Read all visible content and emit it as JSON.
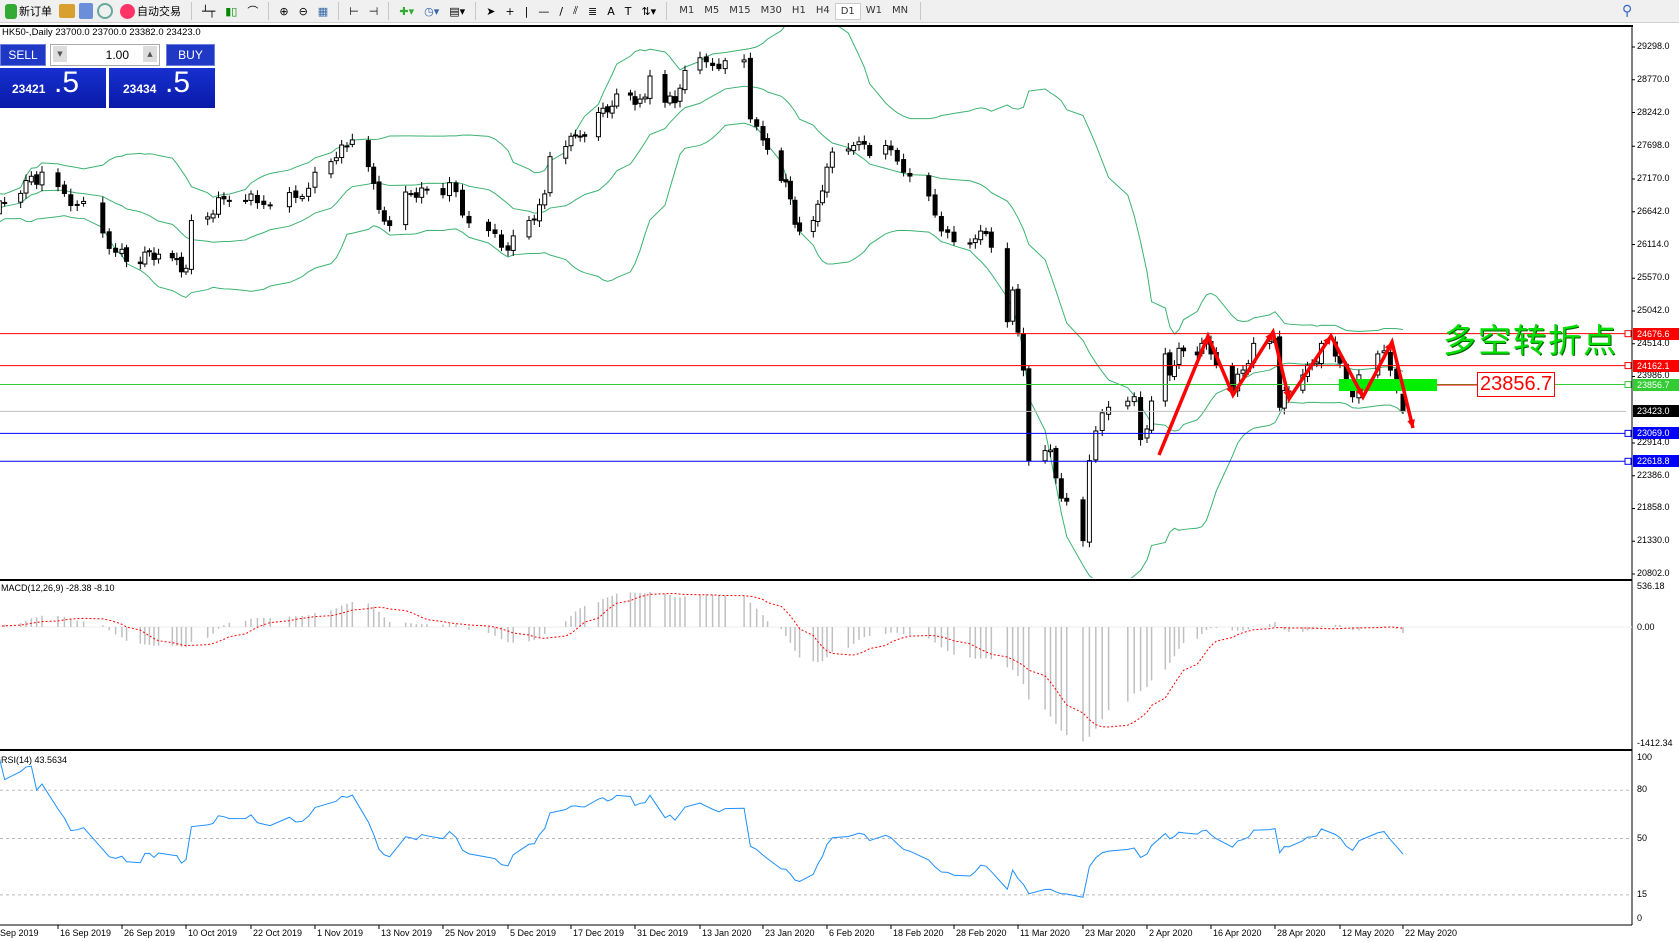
{
  "toolbar": {
    "new_order": "新订单",
    "auto_trading": "自动交易",
    "periods": [
      "M1",
      "M5",
      "M15",
      "M30",
      "H1",
      "H4",
      "D1",
      "W1",
      "MN"
    ],
    "active_period": "D1"
  },
  "chart": {
    "info": "HK50-,Daily  23700.0 23700.0 23382.0 23423.0",
    "symbol": "HK50-",
    "timeframe": "Daily"
  },
  "trade_panel": {
    "sell_label": "SELL",
    "buy_label": "BUY",
    "lot": "1.00",
    "sell_price_main": "23421",
    "sell_price_big": ".5",
    "buy_price_main": "23434",
    "buy_price_big": ".5"
  },
  "price_axis": [
    "29298.0",
    "28770.0",
    "28242.0",
    "27698.0",
    "27170.0",
    "26642.0",
    "26114.0",
    "25570.0",
    "25042.0",
    "24514.0",
    "23986.0",
    "22914.0",
    "22386.0",
    "21858.0",
    "21330.0",
    "20802.0"
  ],
  "levels": [
    {
      "value": "24676.6",
      "color": "#ff0000"
    },
    {
      "value": "24162.1",
      "color": "#ff0000"
    },
    {
      "value": "23856.7",
      "color": "#33cc33"
    },
    {
      "value": "23423.0",
      "color": "#000000",
      "line": "#c0c0c0"
    },
    {
      "value": "23069.0",
      "color": "#0000ff"
    },
    {
      "value": "22618.8",
      "color": "#0000ff"
    }
  ],
  "annotation": {
    "text": "多空转折点",
    "price_box": "23856.7"
  },
  "macd": {
    "label": "MACD(12,26,9) -28.38 -8.10",
    "axis": [
      "536.18",
      "0.00",
      "-1412.34"
    ]
  },
  "rsi": {
    "label": "RSI(14) 43.5634",
    "axis": [
      "100",
      "80",
      "50",
      "15",
      "0"
    ],
    "levels": [
      80,
      50,
      15
    ]
  },
  "date_axis": [
    "Sep 2019",
    "16 Sep 2019",
    "26 Sep 2019",
    "10 Oct 2019",
    "22 Oct 2019",
    "1 Nov 2019",
    "13 Nov 2019",
    "25 Nov 2019",
    "5 Dec 2019",
    "17 Dec 2019",
    "31 Dec 2019",
    "13 Jan 2020",
    "23 Jan 2020",
    "6 Feb 2020",
    "18 Feb 2020",
    "28 Feb 2020",
    "11 Mar 2020",
    "23 Mar 2020",
    "2 Apr 2020",
    "16 Apr 2020",
    "28 Apr 2020",
    "12 May 2020",
    "22 May 2020"
  ],
  "chart_data": {
    "type": "candlestick",
    "ylim": [
      20802,
      29298
    ],
    "indicators": [
      "Bollinger Bands",
      "MACD(12,26,9)",
      "RSI(14)"
    ],
    "close_keypoints": [
      [
        "2019-09-04",
        26590
      ],
      [
        "2019-09-13",
        27280
      ],
      [
        "2019-09-19",
        26760
      ],
      [
        "2019-09-25",
        25990
      ],
      [
        "2019-10-07",
        25900
      ],
      [
        "2019-10-10",
        25730
      ],
      [
        "2019-10-11",
        26500
      ],
      [
        "2019-10-17",
        26850
      ],
      [
        "2019-10-24",
        26760
      ],
      [
        "2019-10-31",
        27020
      ],
      [
        "2019-11-04",
        27450
      ],
      [
        "2019-11-08",
        27800
      ],
      [
        "2019-11-11",
        27370
      ],
      [
        "2019-11-13",
        26680
      ],
      [
        "2019-11-15",
        26420
      ],
      [
        "2019-11-19",
        26930
      ],
      [
        "2019-11-26",
        27110
      ],
      [
        "2019-11-28",
        26590
      ],
      [
        "2019-12-04",
        26070
      ],
      [
        "2019-12-09",
        26500
      ],
      [
        "2019-12-12",
        26930
      ],
      [
        "2019-12-13",
        27530
      ],
      [
        "2019-12-18",
        27880
      ],
      [
        "2019-12-24",
        28310
      ],
      [
        "2020-01-02",
        28490
      ],
      [
        "2020-01-03",
        28830
      ],
      [
        "2020-01-08",
        28400
      ],
      [
        "2020-01-10",
        28920
      ],
      [
        "2020-01-15",
        29000
      ],
      [
        "2020-01-20",
        29090
      ],
      [
        "2020-01-21",
        28140
      ],
      [
        "2020-01-23",
        27800
      ],
      [
        "2020-01-29",
        26850
      ],
      [
        "2020-01-31",
        26330
      ],
      [
        "2020-02-03",
        26500
      ],
      [
        "2020-02-06",
        27360
      ],
      [
        "2020-02-11",
        27710
      ],
      [
        "2020-02-17",
        27710
      ],
      [
        "2020-02-20",
        27280
      ],
      [
        "2020-02-25",
        26590
      ],
      [
        "2020-02-28",
        26160
      ],
      [
        "2020-03-04",
        26330
      ],
      [
        "2020-03-06",
        26070
      ],
      [
        "2020-03-09",
        24870
      ],
      [
        "2020-03-10",
        25380
      ],
      [
        "2020-03-12",
        24090
      ],
      [
        "2020-03-13",
        22630
      ],
      [
        "2020-03-17",
        22800
      ],
      [
        "2020-03-19",
        22025
      ],
      [
        "2020-03-23",
        21340
      ],
      [
        "2020-03-24",
        22630
      ],
      [
        "2020-03-26",
        23400
      ],
      [
        "2020-03-27",
        23490
      ],
      [
        "2020-03-31",
        23660
      ],
      [
        "2020-04-01",
        22970
      ],
      [
        "2020-04-02",
        23140
      ],
      [
        "2020-04-06",
        24350
      ],
      [
        "2020-04-07",
        24010
      ],
      [
        "2020-04-09",
        24440
      ],
      [
        "2020-04-14",
        24520
      ],
      [
        "2020-04-16",
        24350
      ],
      [
        "2020-04-20",
        23750
      ],
      [
        "2020-04-22",
        24090
      ],
      [
        "2020-04-24",
        24520
      ],
      [
        "2020-04-28",
        24600
      ],
      [
        "2020-04-29",
        23490
      ],
      [
        "2020-05-04",
        24010
      ],
      [
        "2020-05-06",
        24180
      ],
      [
        "2020-05-08",
        24520
      ],
      [
        "2020-05-12",
        24200
      ],
      [
        "2020-05-14",
        23660
      ],
      [
        "2020-05-18",
        24350
      ],
      [
        "2020-05-19",
        24400
      ],
      [
        "2020-05-22",
        23423
      ]
    ],
    "colors": {
      "bull": "#ffffff",
      "bear": "#000000",
      "bands": "#3cb371",
      "macd_hist": "#c0c0c0",
      "macd_signal": "#ff0000",
      "rsi": "#1e90ff",
      "zigzag": "#ff0000",
      "zone": "#00ee00"
    }
  }
}
